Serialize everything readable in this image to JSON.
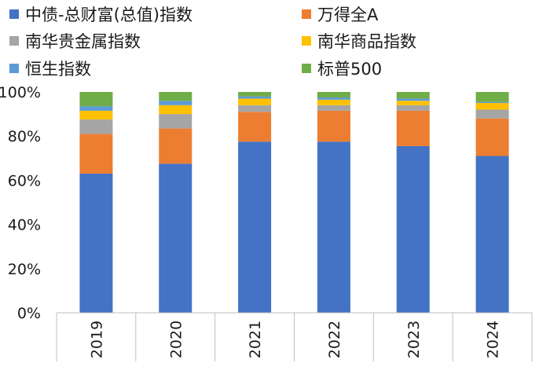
{
  "chart_data": {
    "type": "bar",
    "stacked": true,
    "percent_stacked": true,
    "categories": [
      "2019",
      "2020",
      "2021",
      "2022",
      "2023",
      "2024"
    ],
    "ylim": [
      0,
      100
    ],
    "y_ticks": [
      "0%",
      "20%",
      "40%",
      "60%",
      "80%",
      "100%"
    ],
    "title": "",
    "xlabel": "",
    "ylabel": "",
    "grid": false,
    "legend_position": "top",
    "series": [
      {
        "name": "中债-总财富(总值)指数",
        "color": "#4472C4",
        "values": [
          63,
          67.5,
          77.5,
          77.5,
          75.5,
          71
        ]
      },
      {
        "name": "万得全A",
        "color": "#ED7D31",
        "values": [
          18,
          16,
          13.5,
          14,
          16,
          17
        ]
      },
      {
        "name": "南华贵金属指数",
        "color": "#A5A5A5",
        "values": [
          6.5,
          6.5,
          3,
          2.5,
          2.5,
          4
        ]
      },
      {
        "name": "南华商品指数",
        "color": "#FFC000",
        "values": [
          4,
          4,
          3,
          2.5,
          2,
          3
        ]
      },
      {
        "name": "恒生指数",
        "color": "#5B9BD5",
        "values": [
          2,
          2,
          1,
          1,
          1,
          0.5
        ]
      },
      {
        "name": "标普500",
        "color": "#70AD47",
        "values": [
          6.5,
          4,
          2,
          2.5,
          3,
          4.5
        ]
      }
    ]
  }
}
